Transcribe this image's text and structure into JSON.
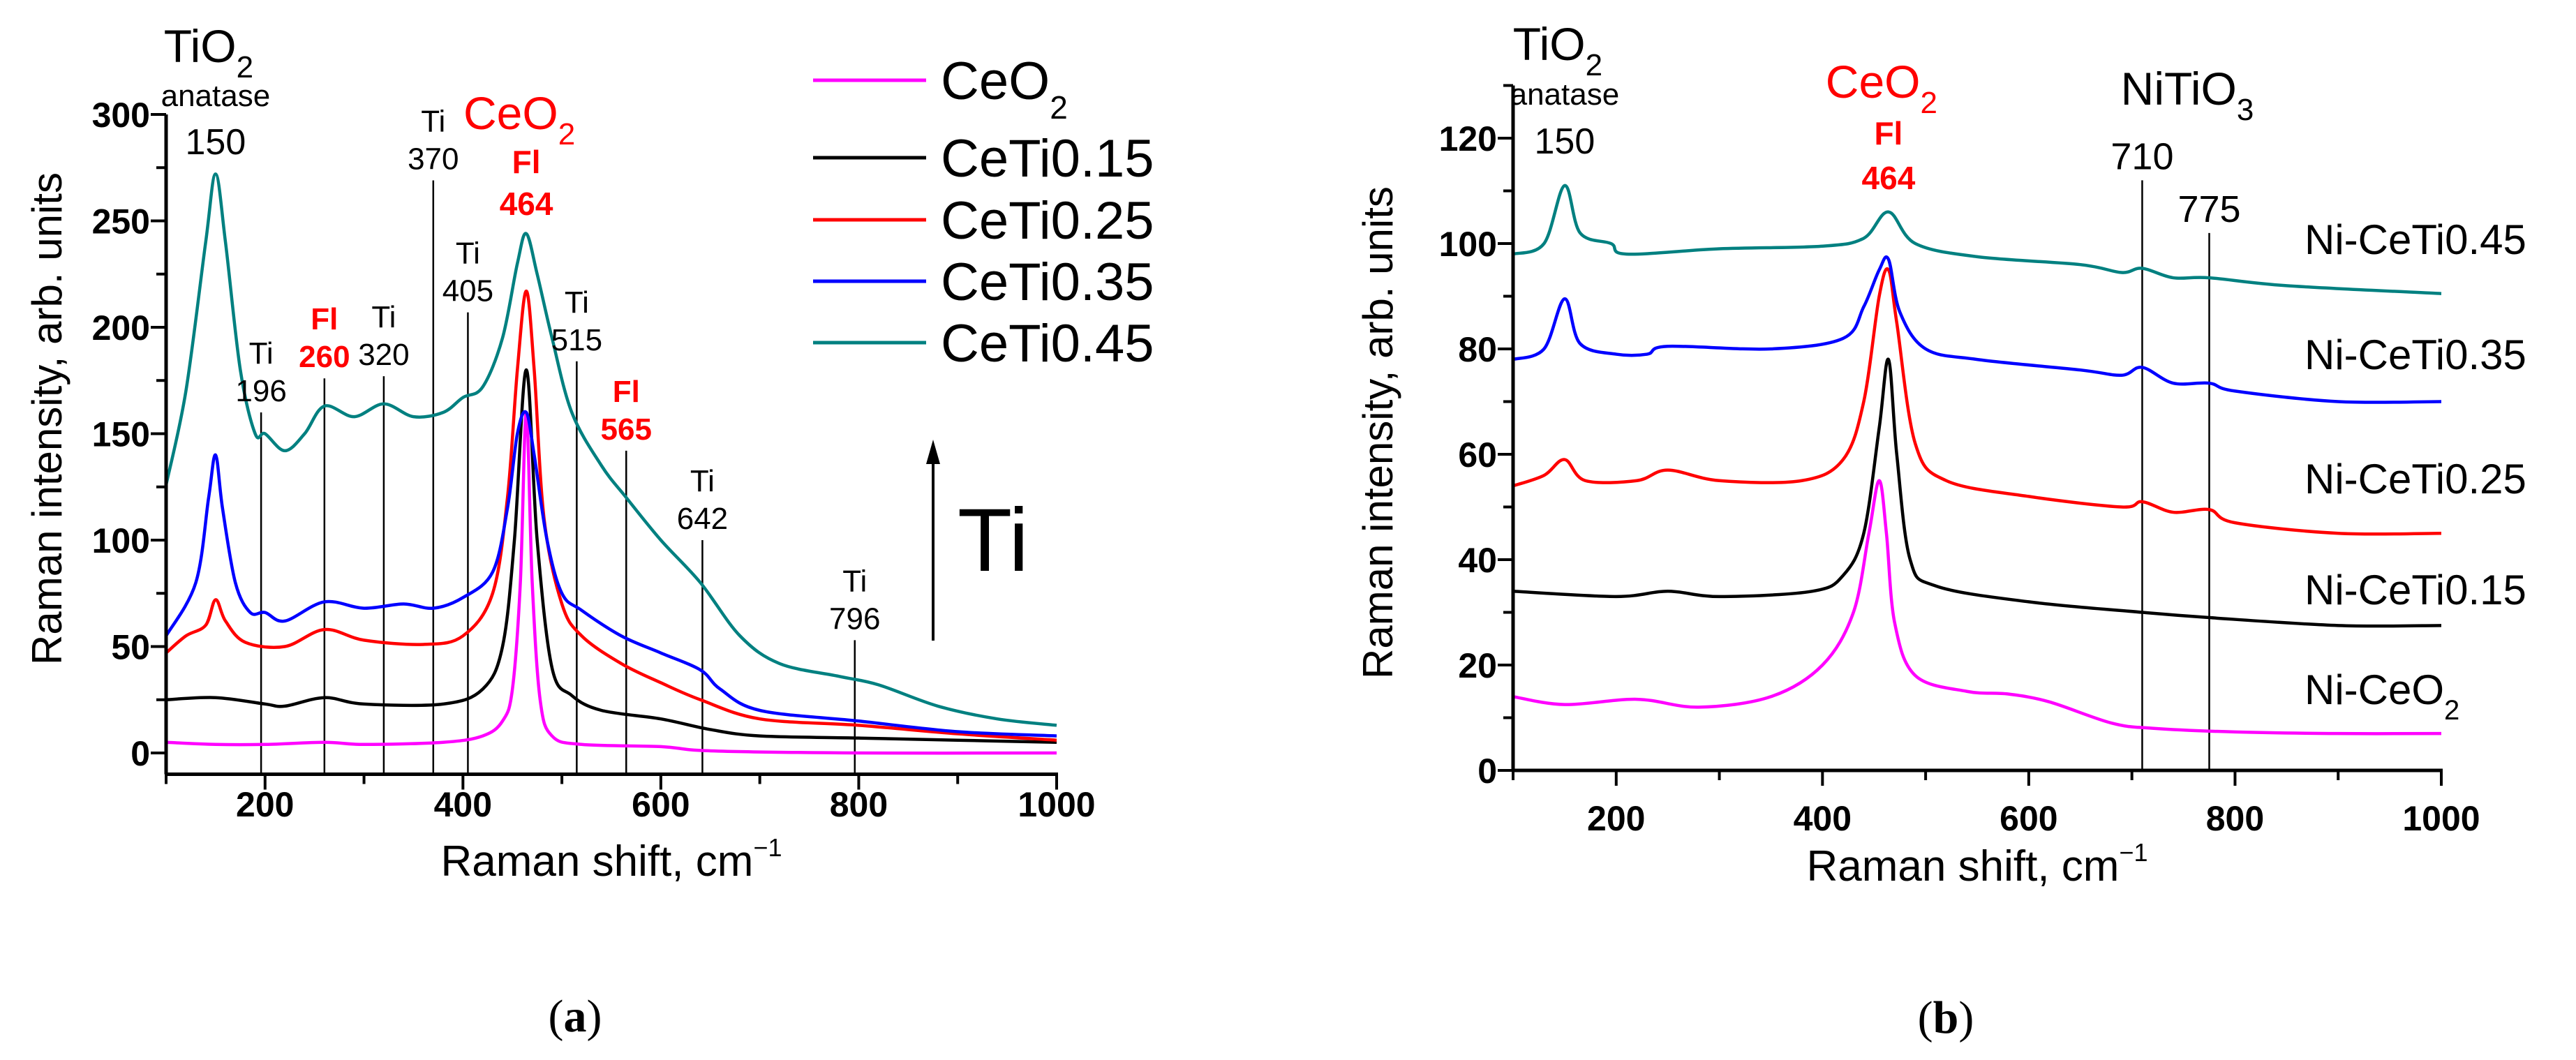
{
  "chart_data": [
    {
      "id": "a",
      "type": "line",
      "caption": "a",
      "xlabel": "Raman shift, cm",
      "xlabel_sup": "−1",
      "ylabel": "Raman intensity, arb. units",
      "xlim": [
        100,
        1000
      ],
      "ylim": [
        -10,
        300
      ],
      "xticks": [
        200,
        400,
        600,
        800,
        1000
      ],
      "yticks": [
        0,
        50,
        100,
        150,
        200,
        250,
        300
      ],
      "grid": false,
      "legend_placement": "top-right",
      "series": [
        {
          "name": "CeO",
          "name_sub": "2",
          "color": "#ff00ff",
          "x": [
            100,
            150,
            200,
            260,
            300,
            380,
            420,
            440,
            450,
            458,
            464,
            470,
            478,
            490,
            520,
            600,
            650,
            800,
            1000
          ],
          "y": [
            5,
            4,
            4,
            5,
            4,
            5,
            8,
            15,
            30,
            80,
            160,
            80,
            25,
            8,
            4,
            3,
            1,
            0,
            0
          ]
        },
        {
          "name": "CeTi0.15",
          "name_sub": "",
          "color": "#000000",
          "x": [
            100,
            150,
            200,
            220,
            260,
            300,
            380,
            420,
            440,
            452,
            464,
            475,
            490,
            510,
            540,
            600,
            650,
            700,
            800,
            900,
            1000
          ],
          "y": [
            25,
            26,
            23,
            22,
            26,
            23,
            23,
            30,
            50,
            100,
            180,
            100,
            40,
            27,
            20,
            16,
            11,
            8,
            7,
            6,
            5
          ]
        },
        {
          "name": "CeTi0.25",
          "name_sub": "",
          "color": "#ff0000",
          "x": [
            100,
            120,
            140,
            150,
            160,
            180,
            220,
            260,
            300,
            360,
            400,
            430,
            445,
            455,
            464,
            472,
            482,
            500,
            520,
            560,
            600,
            640,
            700,
            800,
            900,
            1000
          ],
          "y": [
            47,
            55,
            60,
            72,
            62,
            52,
            50,
            58,
            53,
            51,
            55,
            75,
            120,
            180,
            217,
            180,
            110,
            70,
            55,
            42,
            33,
            25,
            16,
            13,
            9,
            6
          ]
        },
        {
          "name": "CeTi0.35",
          "name_sub": "",
          "color": "#0000ff",
          "x": [
            100,
            130,
            143,
            150,
            157,
            170,
            185,
            200,
            220,
            260,
            300,
            340,
            370,
            400,
            430,
            445,
            455,
            464,
            472,
            485,
            500,
            520,
            560,
            600,
            640,
            660,
            700,
            800,
            900,
            1000
          ],
          "y": [
            55,
            80,
            120,
            140,
            115,
            80,
            66,
            66,
            62,
            71,
            68,
            70,
            68,
            73,
            85,
            115,
            150,
            160,
            140,
            100,
            75,
            67,
            55,
            47,
            39,
            30,
            20,
            15,
            10,
            8
          ]
        },
        {
          "name": "CeTi0.45",
          "name_sub": "",
          "color": "#008080",
          "x": [
            100,
            120,
            140,
            150,
            160,
            175,
            190,
            200,
            220,
            240,
            260,
            290,
            320,
            350,
            380,
            400,
            420,
            440,
            455,
            464,
            475,
            490,
            510,
            540,
            565,
            600,
            640,
            680,
            720,
            780,
            820,
            880,
            940,
            1000
          ],
          "y": [
            126,
            170,
            240,
            272,
            240,
            180,
            150,
            150,
            142,
            150,
            163,
            158,
            164,
            158,
            160,
            167,
            172,
            195,
            230,
            244,
            225,
            195,
            160,
            135,
            120,
            100,
            80,
            55,
            42,
            36,
            32,
            22,
            16,
            13
          ]
        }
      ],
      "annotations": [
        {
          "main": "TiO",
          "sub": "2",
          "sub2": "anatase",
          "value": "150",
          "x": 150,
          "color": "#000000",
          "kind": "header"
        },
        {
          "main": "CeO",
          "sub": "2",
          "sub2": "Fl",
          "value": "464",
          "x": 464,
          "color": "#ff0000",
          "kind": "header-red"
        },
        {
          "top": "Ti",
          "value": "196",
          "x": 196,
          "y": 160,
          "color": "#000000"
        },
        {
          "top": "Fl",
          "value": "260",
          "x": 260,
          "y": 176,
          "color": "#ff0000"
        },
        {
          "top": "Ti",
          "value": "320",
          "x": 320,
          "y": 177,
          "color": "#000000"
        },
        {
          "top": "Ti",
          "value": "370",
          "x": 370,
          "y": 269,
          "color": "#000000"
        },
        {
          "top": "Ti",
          "value": "405",
          "x": 405,
          "y": 207,
          "color": "#000000"
        },
        {
          "top": "Ti",
          "value": "515",
          "x": 515,
          "y": 184,
          "color": "#000000"
        },
        {
          "top": "Fl",
          "value": "565",
          "x": 565,
          "y": 142,
          "color": "#ff0000"
        },
        {
          "top": "Ti",
          "value": "642",
          "x": 642,
          "y": 100,
          "color": "#000000"
        },
        {
          "top": "Ti",
          "value": "796",
          "x": 796,
          "y": 53,
          "color": "#000000"
        }
      ],
      "trend_label": "Ti"
    },
    {
      "id": "b",
      "type": "line",
      "caption": "b",
      "xlabel": "Raman shift, cm",
      "xlabel_sup": "−1",
      "ylabel": "Raman intensity, arb. units",
      "xlim": [
        100,
        1000
      ],
      "ylim": [
        0,
        130
      ],
      "xticks": [
        200,
        400,
        600,
        800,
        1000
      ],
      "yticks": [
        0,
        20,
        40,
        60,
        80,
        100,
        120
      ],
      "grid": false,
      "legend_placement": "inline-right",
      "series": [
        {
          "name": "Ni-CeO",
          "name_sub": "2",
          "color": "#ff00ff",
          "x": [
            100,
            150,
            220,
            280,
            350,
            400,
            430,
            445,
            455,
            462,
            470,
            490,
            540,
            580,
            620,
            680,
            720,
            800,
            900,
            1000
          ],
          "y": [
            14,
            12.5,
            13.5,
            12,
            14,
            20,
            30,
            45,
            55,
            45,
            28,
            18,
            15,
            14.5,
            13,
            9,
            8,
            7.3,
            7,
            7
          ]
        },
        {
          "name": "Ni-CeTi0.15",
          "name_sub": "",
          "color": "#000000",
          "x": [
            100,
            200,
            250,
            300,
            390,
            420,
            440,
            455,
            464,
            472,
            485,
            510,
            600,
            710,
            775,
            900,
            1000
          ],
          "y": [
            34,
            33,
            34,
            33,
            34,
            37,
            45,
            65,
            78,
            60,
            40,
            35,
            32,
            30,
            29,
            27.5,
            27.5
          ]
        },
        {
          "name": "Ni-CeTi0.25",
          "name_sub": "",
          "color": "#ff0000",
          "x": [
            100,
            130,
            150,
            170,
            220,
            250,
            300,
            380,
            420,
            440,
            455,
            464,
            472,
            490,
            520,
            600,
            690,
            710,
            740,
            775,
            800,
            900,
            1000
          ],
          "y": [
            54,
            56,
            59,
            55,
            55,
            57,
            55,
            55,
            59,
            70,
            90,
            95,
            85,
            62,
            55,
            52,
            50,
            51,
            49,
            49.5,
            47,
            45,
            45
          ]
        },
        {
          "name": "Ni-CeTi0.35",
          "name_sub": "",
          "color": "#0000ff",
          "x": [
            100,
            130,
            150,
            165,
            200,
            230,
            250,
            350,
            420,
            440,
            455,
            464,
            475,
            500,
            550,
            650,
            690,
            710,
            740,
            775,
            800,
            900,
            1000
          ],
          "y": [
            78,
            80,
            89.5,
            81,
            79,
            79,
            80.5,
            80,
            82,
            88,
            95,
            97,
            87,
            80,
            78,
            76,
            75,
            76.5,
            73.5,
            73.5,
            72,
            70,
            70
          ]
        },
        {
          "name": "Ni-CeTi0.45",
          "name_sub": "",
          "color": "#008080",
          "x": [
            100,
            130,
            150,
            165,
            195,
            210,
            300,
            400,
            440,
            464,
            490,
            550,
            650,
            690,
            710,
            740,
            775,
            850,
            1000
          ],
          "y": [
            98,
            100,
            111,
            102,
            100,
            98,
            99,
            99.5,
            101,
            106,
            100,
            97.5,
            96,
            94.5,
            95.3,
            93.5,
            93.5,
            92,
            90.5
          ]
        }
      ],
      "annotations": [
        {
          "main": "TiO",
          "sub": "2",
          "sub2": "anatase",
          "value": "150",
          "x": 150,
          "color": "#000000",
          "kind": "header"
        },
        {
          "main": "CeO",
          "sub": "2",
          "sub2": "Fl",
          "value": "464",
          "x": 464,
          "color": "#ff0000",
          "kind": "header-red"
        },
        {
          "main": "NiTiO",
          "sub": "3",
          "x": 670,
          "color": "#000000",
          "kind": "header-plain"
        },
        {
          "top": "",
          "value": "710",
          "x": 710,
          "y": 112,
          "color": "#000000"
        },
        {
          "top": "",
          "value": "775",
          "x": 775,
          "y": 102,
          "color": "#000000"
        }
      ]
    }
  ]
}
